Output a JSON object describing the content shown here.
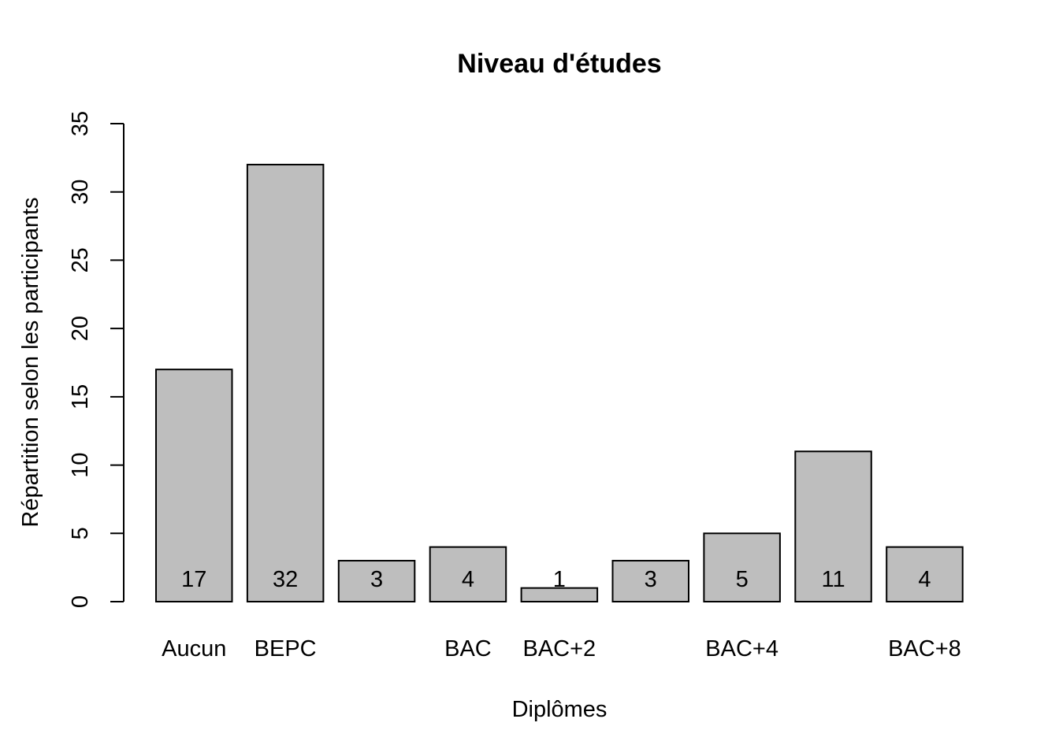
{
  "chart_data": {
    "type": "bar",
    "title": "Niveau d'études",
    "xlabel": "Diplômes",
    "ylabel": "Répartition selon les participants",
    "ylim": [
      0,
      35
    ],
    "yticks": [
      0,
      5,
      10,
      15,
      20,
      25,
      30,
      35
    ],
    "categories": [
      "Aucun",
      "BEPC",
      "",
      "BAC",
      "BAC+2",
      "",
      "BAC+4",
      "",
      "BAC+8"
    ],
    "values": [
      17,
      32,
      3,
      4,
      1,
      3,
      5,
      11,
      4
    ],
    "data_labels": [
      "17",
      "32",
      "3",
      "4",
      "1",
      "3",
      "5",
      "11",
      "4"
    ],
    "bar_color": "#bebebe",
    "grid": false,
    "legend": "none"
  }
}
